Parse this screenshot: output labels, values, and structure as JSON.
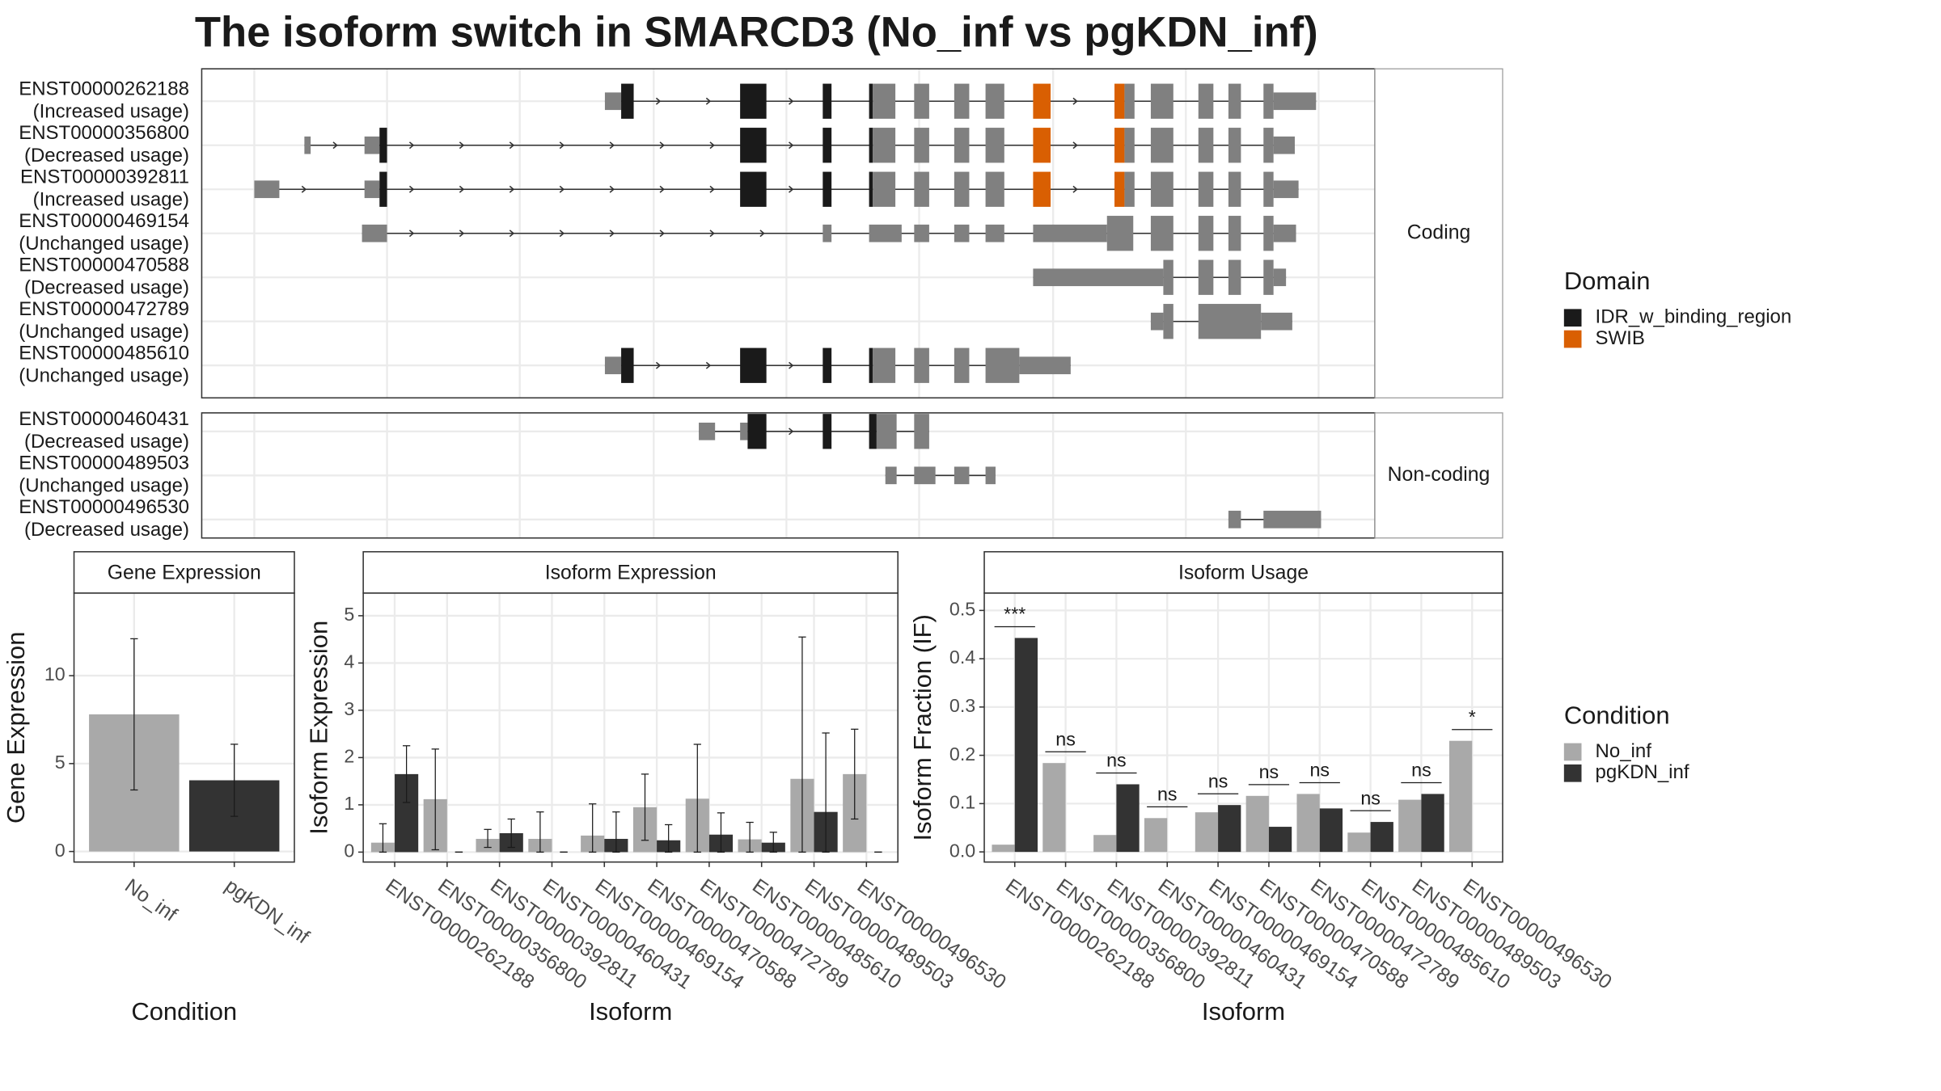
{
  "title": "The isoform switch in SMARCD3 (No_inf vs pgKDN_inf)",
  "chart_data": [
    {
      "type": "structure",
      "legend_title": "Domain",
      "domains": [
        {
          "name": "IDR_w_binding_region",
          "color": "#1a1a1a"
        },
        {
          "name": "SWIB",
          "color": "#d95f02"
        }
      ],
      "groups": [
        {
          "label": "Coding",
          "transcripts": [
            {
              "name": "ENST00000262188",
              "usage": "(Increased usage)"
            },
            {
              "name": "ENST00000356800",
              "usage": "(Decreased usage)"
            },
            {
              "name": "ENST00000392811",
              "usage": "(Increased usage)"
            },
            {
              "name": "ENST00000469154",
              "usage": "(Unchanged usage)"
            },
            {
              "name": "ENST00000470588",
              "usage": "(Decreased usage)"
            },
            {
              "name": "ENST00000472789",
              "usage": "(Unchanged usage)"
            },
            {
              "name": "ENST00000485610",
              "usage": "(Unchanged usage)"
            }
          ]
        },
        {
          "label": "Non-coding",
          "transcripts": [
            {
              "name": "ENST00000460431",
              "usage": "(Decreased usage)"
            },
            {
              "name": "ENST00000489503",
              "usage": "(Unchanged usage)"
            },
            {
              "name": "ENST00000496530",
              "usage": "(Decreased usage)"
            }
          ]
        }
      ]
    },
    {
      "type": "bar",
      "title": "Gene Expression",
      "xlabel": "Condition",
      "ylabel": "Gene Expression",
      "categories": [
        "No_inf",
        "pgKDN_inf"
      ],
      "values": [
        7.8,
        4.05
      ],
      "colors": [
        "#a9a9a9",
        "#333333"
      ],
      "ci_low": [
        3.5,
        2.0
      ],
      "ci_high": [
        12.1,
        6.1
      ],
      "ylim": [
        -0.6,
        14.7
      ],
      "yticks": [
        0,
        5,
        10
      ],
      "grid": true
    },
    {
      "type": "grouped_bar",
      "title": "Isoform Expression",
      "xlabel": "Isoform",
      "ylabel": "Isoform Expression",
      "categories": [
        "ENST00000262188",
        "ENST00000356800",
        "ENST00000392811",
        "ENST00000460431",
        "ENST00000469154",
        "ENST00000470588",
        "ENST00000472789",
        "ENST00000485610",
        "ENST00000489503",
        "ENST00000496530"
      ],
      "series": [
        {
          "name": "No_inf",
          "color": "#a9a9a9",
          "values": [
            0.2,
            1.12,
            0.28,
            0.28,
            0.35,
            0.95,
            1.13,
            0.27,
            1.55,
            1.65
          ],
          "ci_low": [
            0,
            0.05,
            0.1,
            0,
            0,
            0.25,
            0,
            0,
            0,
            0.7
          ],
          "ci_high": [
            0.6,
            2.18,
            0.48,
            0.85,
            1.02,
            1.65,
            2.28,
            0.63,
            4.55,
            2.6
          ]
        },
        {
          "name": "pgKDN_inf",
          "color": "#333333",
          "values": [
            1.65,
            0,
            0.4,
            0,
            0.28,
            0.25,
            0.37,
            0.2,
            0.85,
            0
          ],
          "ci_low": [
            1.05,
            0,
            0.1,
            0,
            0,
            0,
            0,
            0,
            0,
            0
          ],
          "ci_high": [
            2.25,
            0,
            0.7,
            0,
            0.85,
            0.58,
            0.83,
            0.42,
            2.52,
            0
          ]
        }
      ],
      "ylim": [
        -0.21,
        5.48
      ],
      "yticks": [
        0,
        1,
        2,
        3,
        4,
        5
      ],
      "grid": true
    },
    {
      "type": "grouped_bar",
      "title": "Isoform Usage",
      "xlabel": "Isoform",
      "ylabel": "Isoform Fraction (IF)",
      "categories": [
        "ENST00000262188",
        "ENST00000356800",
        "ENST00000392811",
        "ENST00000460431",
        "ENST00000469154",
        "ENST00000470588",
        "ENST00000472789",
        "ENST00000485610",
        "ENST00000489503",
        "ENST00000496530"
      ],
      "series": [
        {
          "name": "No_inf",
          "color": "#a9a9a9",
          "values": [
            0.015,
            0.184,
            0.035,
            0.07,
            0.082,
            0.116,
            0.12,
            0.04,
            0.108,
            0.23
          ]
        },
        {
          "name": "pgKDN_inf",
          "color": "#333333",
          "values": [
            0.443,
            0,
            0.14,
            0,
            0.097,
            0.052,
            0.09,
            0.062,
            0.12,
            0
          ]
        }
      ],
      "significance": [
        "***",
        "ns",
        "ns",
        "ns",
        "ns",
        "ns",
        "ns",
        "ns",
        "ns",
        "*"
      ],
      "legend_title": "Condition",
      "ylim": [
        -0.021,
        0.536
      ],
      "yticks": [
        {
          "value": 0,
          "label": "0.0"
        },
        0.1,
        0.2,
        0.3,
        0.4,
        0.5
      ],
      "grid": true
    }
  ]
}
